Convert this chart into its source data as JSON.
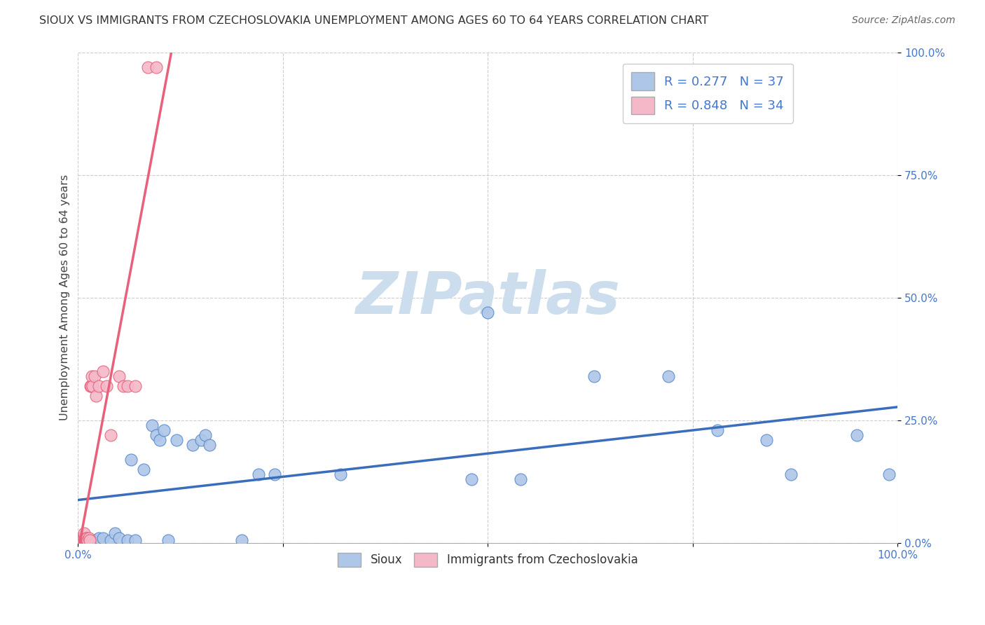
{
  "title": "SIOUX VS IMMIGRANTS FROM CZECHOSLOVAKIA UNEMPLOYMENT AMONG AGES 60 TO 64 YEARS CORRELATION CHART",
  "source": "Source: ZipAtlas.com",
  "ylabel": "Unemployment Among Ages 60 to 64 years",
  "xlim": [
    0,
    1.0
  ],
  "ylim": [
    0,
    1.0
  ],
  "xticks": [
    0.0,
    0.25,
    0.5,
    0.75,
    1.0
  ],
  "xticklabels_left": "0.0%",
  "xticklabels_right": "100.0%",
  "yticks": [
    0.0,
    0.25,
    0.5,
    0.75,
    1.0
  ],
  "yticklabels": [
    "0.0%",
    "25.0%",
    "50.0%",
    "75.0%",
    "100.0%"
  ],
  "legend_labels": [
    "Sioux",
    "Immigrants from Czechoslovakia"
  ],
  "sioux_R": 0.277,
  "sioux_N": 37,
  "czech_R": 0.848,
  "czech_N": 34,
  "sioux_color": "#aec6e8",
  "czech_color": "#f4b8c8",
  "sioux_edge_color": "#5588cc",
  "czech_edge_color": "#e8607a",
  "sioux_line_color": "#3a6ebd",
  "czech_line_color": "#e8607a",
  "tick_label_color": "#4477cc",
  "watermark_text": "ZIPatlas",
  "watermark_color": "#ccdded",
  "background_color": "#ffffff",
  "grid_color": "#cccccc",
  "title_fontsize": 11.5,
  "sioux_x": [
    0.005,
    0.01,
    0.015,
    0.02,
    0.025,
    0.03,
    0.04,
    0.045,
    0.05,
    0.06,
    0.065,
    0.07,
    0.08,
    0.09,
    0.095,
    0.1,
    0.105,
    0.11,
    0.12,
    0.14,
    0.15,
    0.155,
    0.16,
    0.2,
    0.22,
    0.24,
    0.32,
    0.48,
    0.5,
    0.54,
    0.63,
    0.72,
    0.78,
    0.84,
    0.87,
    0.95,
    0.99
  ],
  "sioux_y": [
    0.01,
    0.01,
    0.005,
    0.005,
    0.01,
    0.01,
    0.005,
    0.02,
    0.01,
    0.005,
    0.17,
    0.005,
    0.15,
    0.24,
    0.22,
    0.21,
    0.23,
    0.005,
    0.21,
    0.2,
    0.21,
    0.22,
    0.2,
    0.005,
    0.14,
    0.14,
    0.14,
    0.13,
    0.47,
    0.13,
    0.34,
    0.34,
    0.23,
    0.21,
    0.14,
    0.22,
    0.14
  ],
  "czech_x": [
    0.002,
    0.003,
    0.004,
    0.005,
    0.006,
    0.006,
    0.007,
    0.007,
    0.007,
    0.008,
    0.009,
    0.01,
    0.01,
    0.011,
    0.011,
    0.012,
    0.013,
    0.014,
    0.015,
    0.016,
    0.017,
    0.018,
    0.02,
    0.022,
    0.025,
    0.03,
    0.035,
    0.04,
    0.05,
    0.055,
    0.06,
    0.07,
    0.085,
    0.095
  ],
  "czech_y": [
    0.005,
    0.01,
    0.005,
    0.005,
    0.01,
    0.005,
    0.005,
    0.01,
    0.02,
    0.005,
    0.005,
    0.005,
    0.01,
    0.005,
    0.01,
    0.005,
    0.01,
    0.005,
    0.32,
    0.32,
    0.34,
    0.32,
    0.34,
    0.3,
    0.32,
    0.35,
    0.32,
    0.22,
    0.34,
    0.32,
    0.32,
    0.32,
    0.97,
    0.97
  ]
}
